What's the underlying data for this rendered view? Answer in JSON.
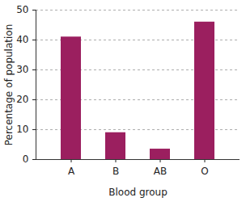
{
  "chart_data": {
    "type": "bar",
    "categories": [
      "A",
      "B",
      "AB",
      "O"
    ],
    "values": [
      41,
      9,
      3.5,
      46
    ],
    "color": "#9b1f5f",
    "xlabel": "Blood group",
    "ylabel": "Percentage of population",
    "ylim": [
      0,
      50
    ],
    "yticks": [
      0,
      10,
      20,
      30,
      40,
      50
    ],
    "grid": true
  }
}
